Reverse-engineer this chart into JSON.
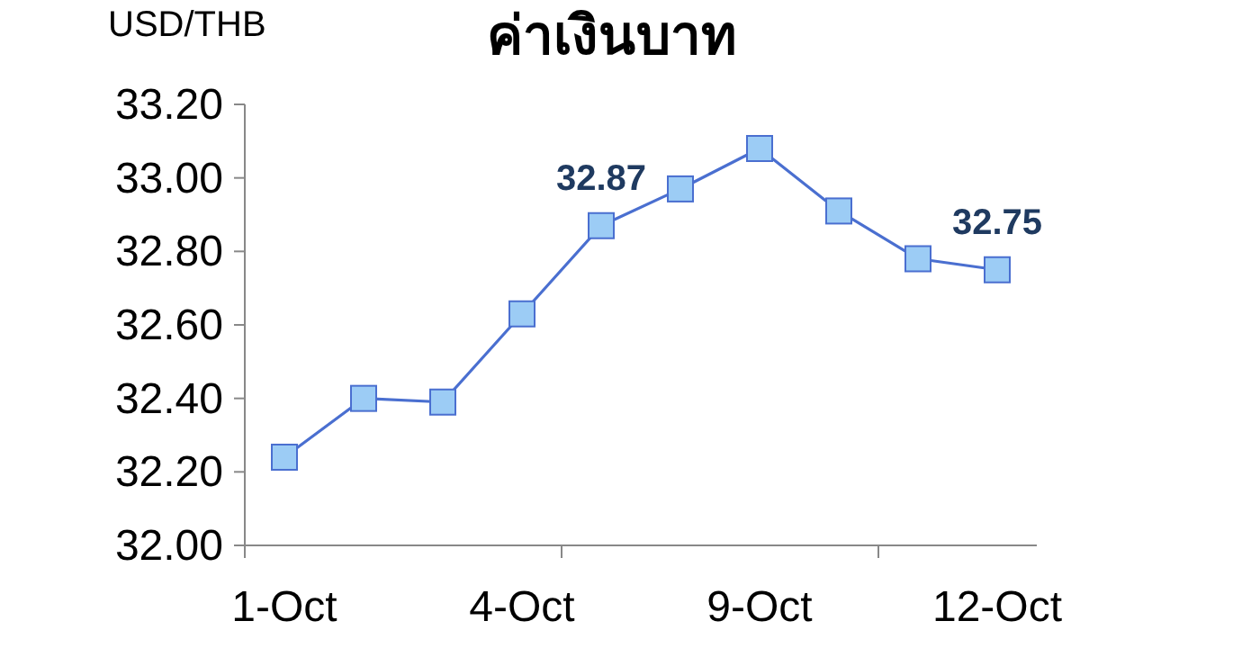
{
  "chart_data": {
    "type": "line",
    "title": "ค่าเงินบาท",
    "ylabel": "USD/THB",
    "categories": [
      "1-Oct",
      null,
      null,
      "4-Oct",
      null,
      null,
      "9-Oct",
      null,
      null,
      "12-Oct"
    ],
    "series": [
      {
        "color": "#4a6fd0",
        "values": [
          32.24,
          32.4,
          32.39,
          32.63,
          32.87,
          32.97,
          33.08,
          32.91,
          32.78,
          32.75
        ],
        "value_labels": [
          null,
          null,
          null,
          null,
          "32.87",
          null,
          null,
          null,
          null,
          "32.75"
        ]
      }
    ],
    "ylim": [
      32.0,
      33.2
    ],
    "yticks": [
      {
        "value": 32.0,
        "label": "32.00"
      },
      {
        "value": 32.2,
        "label": "32.20"
      },
      {
        "value": 32.4,
        "label": "32.40"
      },
      {
        "value": 32.6,
        "label": "32.60"
      },
      {
        "value": 32.8,
        "label": "32.80"
      },
      {
        "value": 33.0,
        "label": "33.00"
      },
      {
        "value": 33.2,
        "label": "33.20"
      }
    ],
    "marker": "square",
    "line_style": "solid"
  }
}
